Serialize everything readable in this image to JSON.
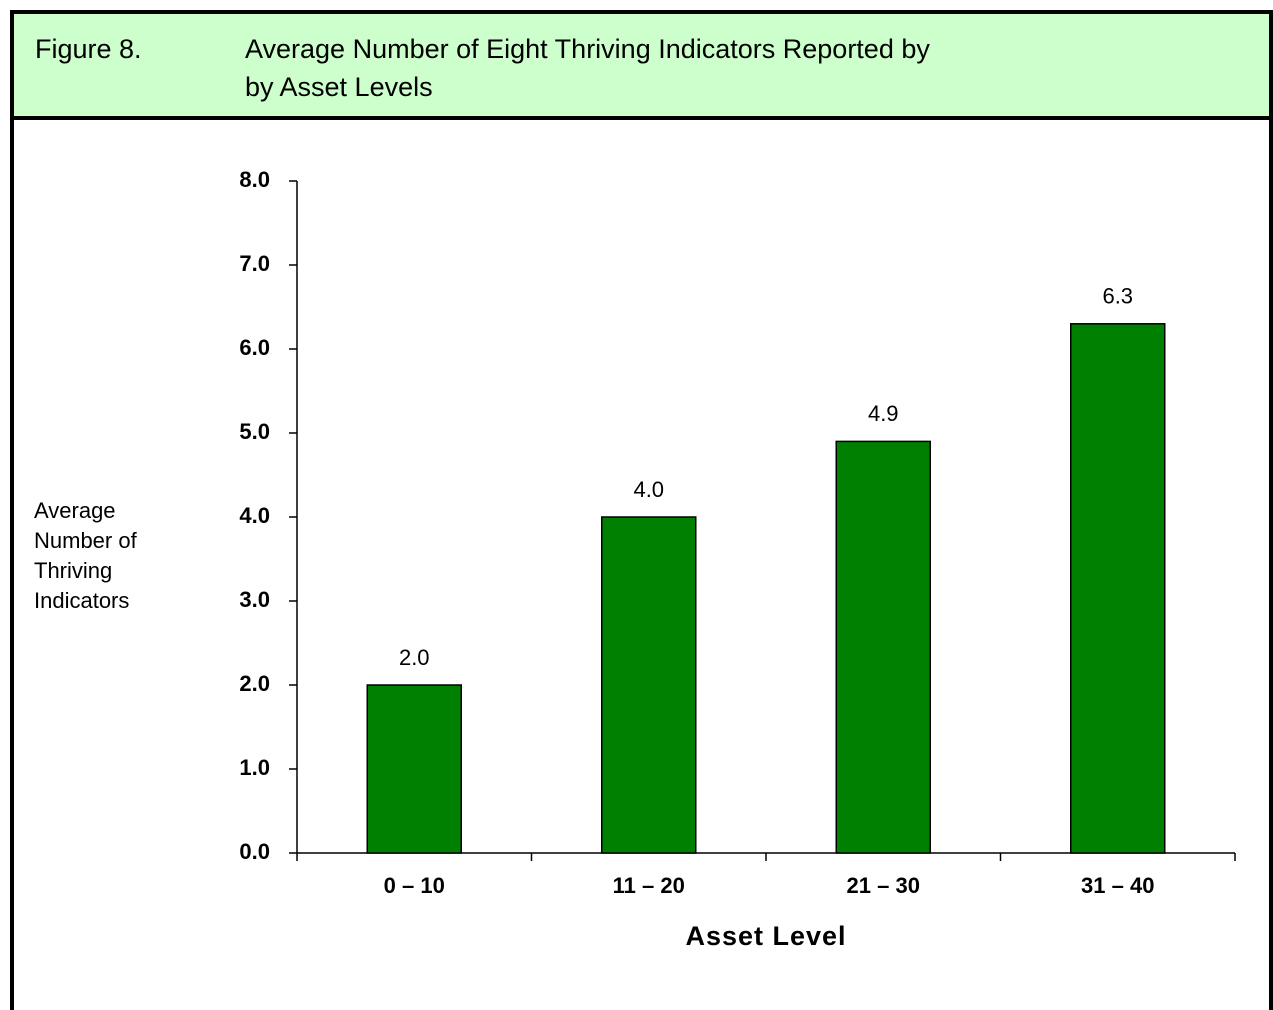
{
  "figure_label": "Figure 8.",
  "chart_data": {
    "type": "bar",
    "title": [
      "Average Number of Eight Thriving Indicators Reported by",
      "by Asset Levels"
    ],
    "y_label": [
      "Average",
      "Number of",
      "Thriving",
      "Indicators"
    ],
    "x_label": "Asset Level",
    "categories": [
      "0 – 10",
      "11 – 20",
      "21 – 30",
      "31 – 40"
    ],
    "values": [
      2.0,
      4.0,
      4.9,
      6.3
    ],
    "value_labels": [
      "2.0",
      "4.0",
      "4.9",
      "6.3"
    ],
    "color": "#008000",
    "ylim": [
      0,
      8
    ],
    "yticks": [
      {
        "value": 0,
        "label": "0.0"
      },
      {
        "value": 1,
        "label": "1.0"
      },
      {
        "value": 2,
        "label": "2.0"
      },
      {
        "value": 3,
        "label": "3.0"
      },
      {
        "value": 4,
        "label": "4.0"
      },
      {
        "value": 5,
        "label": "5.0"
      },
      {
        "value": 6,
        "label": "6.0"
      },
      {
        "value": 7,
        "label": "7.0"
      },
      {
        "value": 8,
        "label": "8.0"
      }
    ],
    "grid": false
  }
}
